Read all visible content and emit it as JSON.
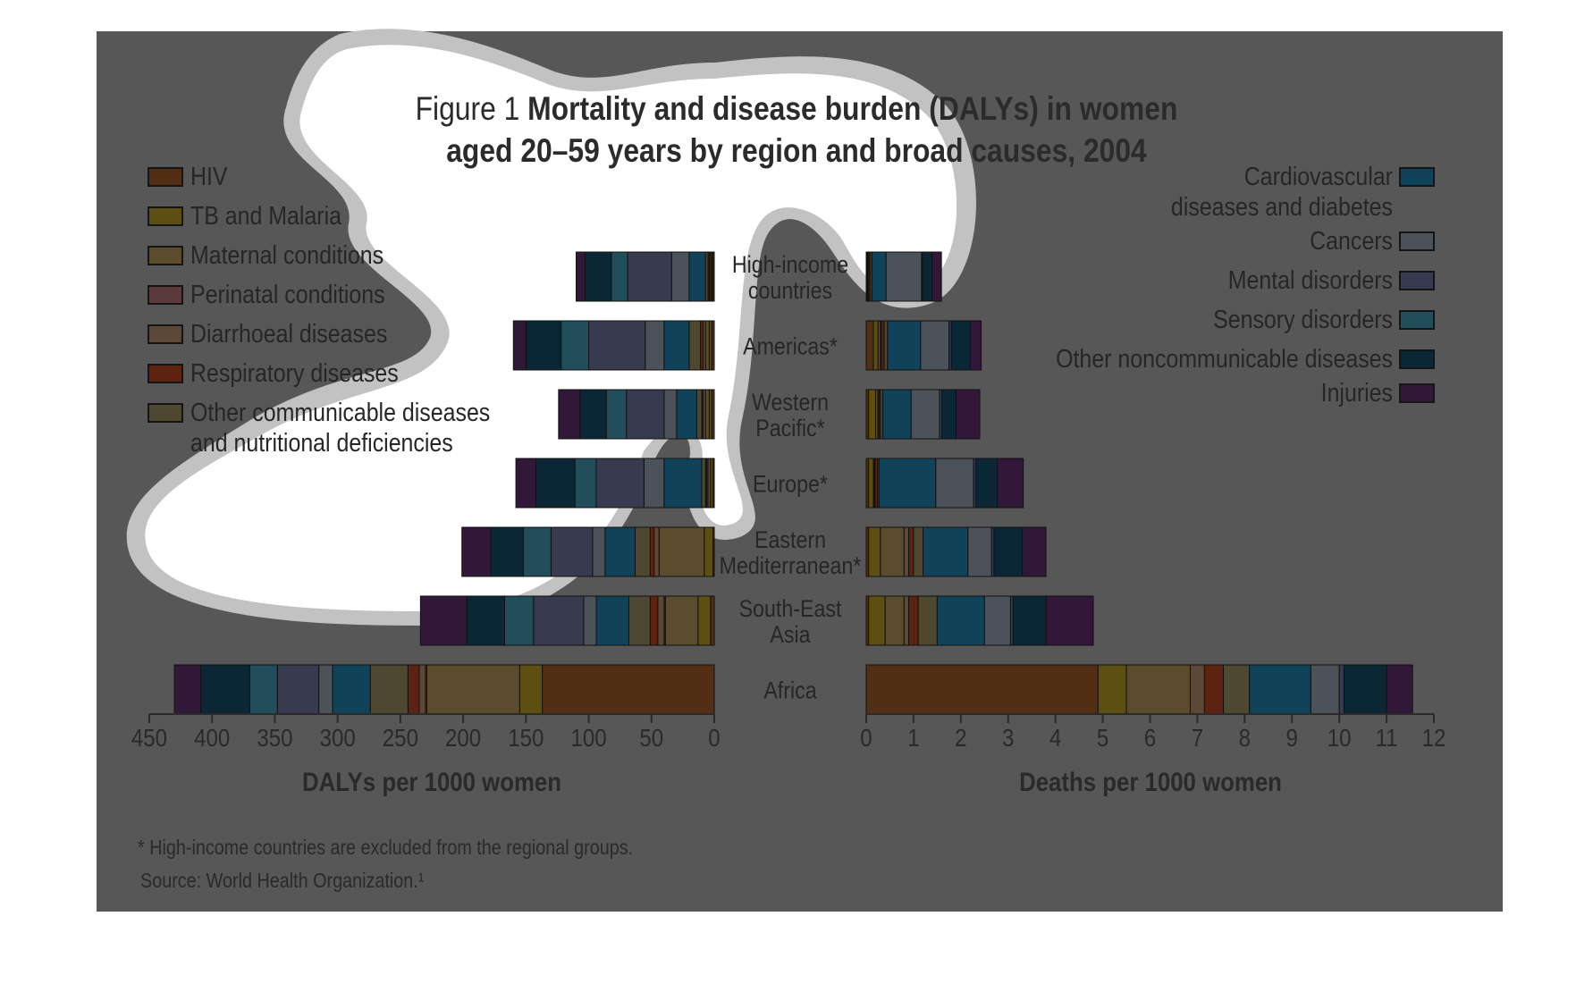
{
  "title": {
    "prefix": "Figure 1",
    "line1_bold": "Mortality and disease burden (DALYs) in women",
    "line2": "aged 20–59 years by region and broad causes, 2004"
  },
  "notes": {
    "footnote": "* High-income countries are excluded from the regional groups.",
    "source": "Source: World Health Organization.¹"
  },
  "colors": {
    "panel_bg": "#575757",
    "highlight": "#ffffff",
    "HIV": "#522f14",
    "TB and Malaria": "#5d4f12",
    "Maternal conditions": "#5a4c2c",
    "Perinatal conditions": "#5a3a3a",
    "Diarrhoeal diseases": "#5b4836",
    "Respiratory diseases": "#5c2410",
    "Other communicable diseases and nutritional deficiencies": "#4e4830",
    "Cardiovascular diseases and diabetes": "#10425a",
    "Cancers": "#4b5259",
    "Mental disorders": "#383b50",
    "Sensory disorders": "#214e5a",
    "Other noncommunicable diseases": "#0b2736",
    "Injuries": "#321838"
  },
  "chart_data": [
    {
      "type": "bar",
      "orientation": "horizontal-stacked",
      "xlabel": "DALYs per 1000 women",
      "xlim": [
        0,
        450
      ],
      "x_reversed": true,
      "xticks": [
        450,
        400,
        350,
        300,
        250,
        200,
        150,
        100,
        50,
        0
      ],
      "categories": [
        "High-income countries",
        "Americas*",
        "Western Pacific*",
        "Europe*",
        "Eastern Mediterranean*",
        "South-East Asia",
        "Africa"
      ],
      "series": [
        {
          "name": "HIV",
          "values": [
            1,
            2,
            2,
            1,
            1,
            3,
            137
          ]
        },
        {
          "name": "TB and Malaria",
          "values": [
            1,
            2,
            2,
            2,
            7,
            10,
            18
          ]
        },
        {
          "name": "Maternal conditions",
          "values": [
            1,
            3,
            3,
            2,
            36,
            26,
            74
          ]
        },
        {
          "name": "Perinatal conditions",
          "values": [
            0,
            0,
            0,
            0,
            0,
            1,
            1
          ]
        },
        {
          "name": "Diarrhoeal diseases",
          "values": [
            1,
            2,
            2,
            1,
            4,
            5,
            5
          ]
        },
        {
          "name": "Respiratory diseases",
          "values": [
            1,
            2,
            1,
            1,
            3,
            6,
            9
          ]
        },
        {
          "name": "Other communicable diseases and nutritional deficiencies",
          "values": [
            2,
            9,
            4,
            3,
            12,
            17,
            30
          ]
        },
        {
          "name": "Cardiovascular diseases and diabetes",
          "values": [
            13,
            20,
            16,
            30,
            24,
            26,
            30
          ]
        },
        {
          "name": "Cancers",
          "values": [
            14,
            15,
            10,
            16,
            10,
            10,
            11
          ]
        },
        {
          "name": "Mental disorders",
          "values": [
            35,
            45,
            30,
            38,
            33,
            40,
            33
          ]
        },
        {
          "name": "Sensory disorders",
          "values": [
            13,
            22,
            16,
            17,
            22,
            23,
            22
          ]
        },
        {
          "name": "Other noncommunicable diseases",
          "values": [
            21,
            28,
            21,
            31,
            26,
            30,
            39
          ]
        },
        {
          "name": "Injuries",
          "values": [
            7,
            10,
            17,
            16,
            23,
            37,
            21
          ]
        }
      ]
    },
    {
      "type": "bar",
      "orientation": "horizontal-stacked",
      "xlabel": "Deaths per 1000 women",
      "xlim": [
        0,
        12
      ],
      "xticks": [
        0,
        1,
        2,
        3,
        4,
        5,
        6,
        7,
        8,
        9,
        10,
        11,
        12
      ],
      "categories": [
        "High-income countries",
        "Americas*",
        "Western Pacific*",
        "Europe*",
        "Eastern Mediterranean*",
        "South-East Asia",
        "Africa"
      ],
      "series": [
        {
          "name": "HIV",
          "values": [
            0.01,
            0.15,
            0.05,
            0.05,
            0.05,
            0.05,
            4.9
          ]
        },
        {
          "name": "TB and Malaria",
          "values": [
            0.02,
            0.1,
            0.15,
            0.1,
            0.25,
            0.35,
            0.6
          ]
        },
        {
          "name": "Maternal conditions",
          "values": [
            0.01,
            0.05,
            0.05,
            0.02,
            0.5,
            0.4,
            1.35
          ]
        },
        {
          "name": "Perinatal conditions",
          "values": [
            0,
            0,
            0,
            0,
            0,
            0,
            0
          ]
        },
        {
          "name": "Diarrhoeal diseases",
          "values": [
            0.01,
            0.02,
            0.02,
            0.02,
            0.1,
            0.1,
            0.3
          ]
        },
        {
          "name": "Respiratory diseases",
          "values": [
            0.03,
            0.06,
            0.03,
            0.05,
            0.1,
            0.2,
            0.4
          ]
        },
        {
          "name": "Other communicable diseases and nutritional deficiencies",
          "values": [
            0.04,
            0.07,
            0.05,
            0.03,
            0.2,
            0.4,
            0.55
          ]
        },
        {
          "name": "Cardiovascular diseases and diabetes",
          "values": [
            0.3,
            0.7,
            0.6,
            1.2,
            0.95,
            1.0,
            1.3
          ]
        },
        {
          "name": "Cancers",
          "values": [
            0.75,
            0.6,
            0.6,
            0.8,
            0.5,
            0.55,
            0.6
          ]
        },
        {
          "name": "Mental disorders",
          "values": [
            0.02,
            0.05,
            0.05,
            0.05,
            0.05,
            0.05,
            0.1
          ]
        },
        {
          "name": "Sensory disorders",
          "values": [
            0,
            0,
            0,
            0,
            0,
            0,
            0
          ]
        },
        {
          "name": "Other noncommunicable diseases",
          "values": [
            0.2,
            0.4,
            0.3,
            0.45,
            0.6,
            0.7,
            0.9
          ]
        },
        {
          "name": "Injuries",
          "values": [
            0.2,
            0.23,
            0.5,
            0.55,
            0.5,
            1.0,
            0.55
          ]
        }
      ]
    }
  ],
  "center_labels": [
    [
      "High-income",
      "countries"
    ],
    [
      "Americas*"
    ],
    [
      "Western",
      "Pacific*"
    ],
    [
      "Europe*"
    ],
    [
      "Eastern",
      "Mediterranean*"
    ],
    [
      "South-East",
      "Asia"
    ],
    [
      "Africa"
    ]
  ],
  "legend_left": [
    {
      "series": "HIV",
      "lines": [
        "HIV"
      ]
    },
    {
      "series": "TB and Malaria",
      "lines": [
        "TB and Malaria"
      ]
    },
    {
      "series": "Maternal conditions",
      "lines": [
        "Maternal conditions"
      ]
    },
    {
      "series": "Perinatal conditions",
      "lines": [
        "Perinatal conditions"
      ]
    },
    {
      "series": "Diarrhoeal diseases",
      "lines": [
        "Diarrhoeal diseases"
      ]
    },
    {
      "series": "Respiratory diseases",
      "lines": [
        "Respiratory diseases"
      ]
    },
    {
      "series": "Other communicable diseases and nutritional deficiencies",
      "lines": [
        "Other communicable diseases",
        "and nutritional deficiencies"
      ]
    }
  ],
  "legend_right": [
    {
      "series": "Cardiovascular diseases and diabetes",
      "lines": [
        "Cardiovascular",
        "diseases and diabetes"
      ]
    },
    {
      "series": "Cancers",
      "lines": [
        "Cancers"
      ]
    },
    {
      "series": "Mental disorders",
      "lines": [
        "Mental disorders"
      ]
    },
    {
      "series": "Sensory disorders",
      "lines": [
        "Sensory disorders"
      ]
    },
    {
      "series": "Other noncommunicable diseases",
      "lines": [
        "Other noncommunicable diseases"
      ]
    },
    {
      "series": "Injuries",
      "lines": [
        "Injuries"
      ]
    }
  ]
}
